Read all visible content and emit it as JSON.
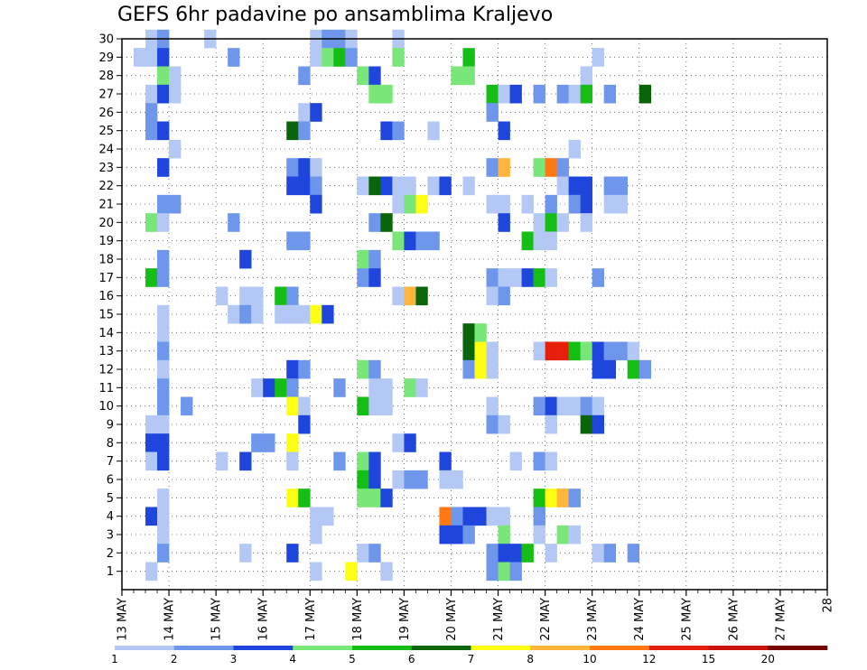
{
  "chart_data": {
    "type": "heatmap",
    "title": "GEFS 6hr padavine po ansamblima Kraljevo",
    "x_ticks": [
      "13 MAY",
      "14 MAY",
      "15 MAY",
      "16 MAY",
      "17 MAY",
      "18 MAY",
      "19 MAY",
      "20 MAY",
      "21 MAY",
      "22 MAY",
      "23 MAY",
      "24 MAY",
      "25 MAY",
      "26 MAY",
      "27 MAY",
      "28"
    ],
    "x_steps_per_day": 4,
    "y_ticks": [
      1,
      2,
      3,
      4,
      5,
      6,
      7,
      8,
      9,
      10,
      11,
      12,
      13,
      14,
      15,
      16,
      17,
      18,
      19,
      20,
      21,
      22,
      23,
      24,
      25,
      26,
      27,
      28,
      29,
      30
    ],
    "ylim": [
      0,
      30
    ],
    "grid": "dotted",
    "colorbar": {
      "levels": [
        "1",
        "2",
        "3",
        "4",
        "5",
        "6",
        "7",
        "8",
        "10",
        "12",
        "15",
        "20"
      ],
      "colors": [
        "#b4c8f5",
        "#6e96eb",
        "#1e46dc",
        "#78e678",
        "#14be14",
        "#0a640a",
        "#ffff14",
        "#ffb43c",
        "#ff7814",
        "#e61e0a",
        "#c81400",
        "#780000"
      ]
    },
    "series_format": "member, step index (6-hourly from 13 MAY 00Z), colour class index",
    "cells": [
      [
        30,
        2,
        0
      ],
      [
        30,
        3,
        1
      ],
      [
        30,
        7,
        0
      ],
      [
        30,
        16,
        0
      ],
      [
        30,
        17,
        1
      ],
      [
        30,
        18,
        1
      ],
      [
        30,
        19,
        0
      ],
      [
        30,
        23,
        0
      ],
      [
        29,
        1,
        0
      ],
      [
        29,
        2,
        0
      ],
      [
        29,
        3,
        2
      ],
      [
        29,
        9,
        1
      ],
      [
        29,
        16,
        0
      ],
      [
        29,
        17,
        3
      ],
      [
        29,
        18,
        4
      ],
      [
        29,
        19,
        1
      ],
      [
        29,
        23,
        3
      ],
      [
        29,
        29,
        4
      ],
      [
        29,
        40,
        0
      ],
      [
        28,
        3,
        3
      ],
      [
        28,
        4,
        0
      ],
      [
        28,
        15,
        1
      ],
      [
        28,
        20,
        3
      ],
      [
        28,
        21,
        2
      ],
      [
        28,
        28,
        3
      ],
      [
        28,
        29,
        3
      ],
      [
        28,
        39,
        0
      ],
      [
        27,
        2,
        0
      ],
      [
        27,
        3,
        2
      ],
      [
        27,
        4,
        0
      ],
      [
        27,
        21,
        3
      ],
      [
        27,
        22,
        3
      ],
      [
        27,
        31,
        4
      ],
      [
        27,
        32,
        0
      ],
      [
        27,
        33,
        2
      ],
      [
        27,
        35,
        1
      ],
      [
        27,
        37,
        1
      ],
      [
        27,
        38,
        0
      ],
      [
        27,
        39,
        4
      ],
      [
        27,
        41,
        1
      ],
      [
        27,
        44,
        5
      ],
      [
        26,
        2,
        1
      ],
      [
        26,
        15,
        0
      ],
      [
        26,
        16,
        2
      ],
      [
        26,
        31,
        1
      ],
      [
        25,
        2,
        1
      ],
      [
        25,
        3,
        2
      ],
      [
        25,
        14,
        5
      ],
      [
        25,
        15,
        1
      ],
      [
        25,
        22,
        2
      ],
      [
        25,
        23,
        1
      ],
      [
        25,
        26,
        0
      ],
      [
        25,
        32,
        2
      ],
      [
        24,
        4,
        0
      ],
      [
        24,
        38,
        0
      ],
      [
        23,
        3,
        2
      ],
      [
        23,
        14,
        1
      ],
      [
        23,
        15,
        2
      ],
      [
        23,
        16,
        0
      ],
      [
        23,
        31,
        1
      ],
      [
        23,
        32,
        7
      ],
      [
        23,
        35,
        3
      ],
      [
        23,
        36,
        8
      ],
      [
        23,
        37,
        1
      ],
      [
        22,
        14,
        2
      ],
      [
        22,
        15,
        2
      ],
      [
        22,
        16,
        1
      ],
      [
        22,
        20,
        0
      ],
      [
        22,
        21,
        5
      ],
      [
        22,
        22,
        2
      ],
      [
        22,
        23,
        0
      ],
      [
        22,
        24,
        0
      ],
      [
        22,
        26,
        0
      ],
      [
        22,
        27,
        2
      ],
      [
        22,
        29,
        0
      ],
      [
        22,
        37,
        0
      ],
      [
        22,
        38,
        2
      ],
      [
        22,
        39,
        2
      ],
      [
        22,
        41,
        1
      ],
      [
        22,
        42,
        1
      ],
      [
        21,
        3,
        1
      ],
      [
        21,
        4,
        1
      ],
      [
        21,
        16,
        2
      ],
      [
        21,
        23,
        0
      ],
      [
        21,
        24,
        3
      ],
      [
        21,
        25,
        6
      ],
      [
        21,
        31,
        0
      ],
      [
        21,
        32,
        0
      ],
      [
        21,
        34,
        0
      ],
      [
        21,
        36,
        1
      ],
      [
        21,
        38,
        1
      ],
      [
        21,
        39,
        2
      ],
      [
        21,
        41,
        0
      ],
      [
        21,
        42,
        0
      ],
      [
        20,
        2,
        3
      ],
      [
        20,
        3,
        0
      ],
      [
        20,
        9,
        1
      ],
      [
        20,
        21,
        1
      ],
      [
        20,
        22,
        5
      ],
      [
        20,
        32,
        2
      ],
      [
        20,
        35,
        0
      ],
      [
        20,
        36,
        4
      ],
      [
        20,
        37,
        0
      ],
      [
        20,
        39,
        0
      ],
      [
        19,
        14,
        1
      ],
      [
        19,
        15,
        1
      ],
      [
        19,
        23,
        3
      ],
      [
        19,
        24,
        2
      ],
      [
        19,
        25,
        1
      ],
      [
        19,
        26,
        1
      ],
      [
        19,
        34,
        4
      ],
      [
        19,
        35,
        0
      ],
      [
        19,
        36,
        0
      ],
      [
        18,
        3,
        1
      ],
      [
        18,
        10,
        2
      ],
      [
        18,
        20,
        3
      ],
      [
        18,
        21,
        1
      ],
      [
        17,
        2,
        4
      ],
      [
        17,
        3,
        1
      ],
      [
        17,
        20,
        1
      ],
      [
        17,
        21,
        2
      ],
      [
        17,
        31,
        1
      ],
      [
        17,
        32,
        0
      ],
      [
        17,
        33,
        0
      ],
      [
        17,
        34,
        2
      ],
      [
        17,
        35,
        4
      ],
      [
        17,
        36,
        0
      ],
      [
        17,
        40,
        1
      ],
      [
        16,
        8,
        0
      ],
      [
        16,
        10,
        0
      ],
      [
        16,
        11,
        0
      ],
      [
        16,
        13,
        4
      ],
      [
        16,
        14,
        1
      ],
      [
        16,
        23,
        0
      ],
      [
        16,
        24,
        7
      ],
      [
        16,
        25,
        5
      ],
      [
        16,
        31,
        0
      ],
      [
        16,
        32,
        1
      ],
      [
        15,
        3,
        0
      ],
      [
        15,
        9,
        0
      ],
      [
        15,
        10,
        1
      ],
      [
        15,
        11,
        0
      ],
      [
        15,
        13,
        0
      ],
      [
        15,
        14,
        0
      ],
      [
        15,
        15,
        0
      ],
      [
        15,
        16,
        6
      ],
      [
        15,
        17,
        2
      ],
      [
        14,
        3,
        0
      ],
      [
        14,
        29,
        5
      ],
      [
        14,
        30,
        3
      ],
      [
        13,
        3,
        1
      ],
      [
        13,
        29,
        5
      ],
      [
        13,
        30,
        6
      ],
      [
        13,
        31,
        0
      ],
      [
        13,
        35,
        0
      ],
      [
        13,
        36,
        9
      ],
      [
        13,
        37,
        9
      ],
      [
        13,
        38,
        4
      ],
      [
        13,
        39,
        3
      ],
      [
        13,
        40,
        2
      ],
      [
        13,
        41,
        1
      ],
      [
        13,
        42,
        1
      ],
      [
        13,
        43,
        0
      ],
      [
        12,
        3,
        0
      ],
      [
        12,
        14,
        2
      ],
      [
        12,
        15,
        1
      ],
      [
        12,
        20,
        3
      ],
      [
        12,
        21,
        1
      ],
      [
        12,
        29,
        1
      ],
      [
        12,
        30,
        6
      ],
      [
        12,
        31,
        0
      ],
      [
        12,
        40,
        2
      ],
      [
        12,
        41,
        2
      ],
      [
        12,
        43,
        4
      ],
      [
        12,
        44,
        1
      ],
      [
        11,
        3,
        1
      ],
      [
        11,
        11,
        0
      ],
      [
        11,
        12,
        2
      ],
      [
        11,
        13,
        4
      ],
      [
        11,
        14,
        1
      ],
      [
        11,
        18,
        1
      ],
      [
        11,
        21,
        0
      ],
      [
        11,
        22,
        0
      ],
      [
        11,
        24,
        3
      ],
      [
        11,
        25,
        0
      ],
      [
        10,
        3,
        1
      ],
      [
        10,
        5,
        1
      ],
      [
        10,
        14,
        6
      ],
      [
        10,
        15,
        0
      ],
      [
        10,
        20,
        4
      ],
      [
        10,
        21,
        0
      ],
      [
        10,
        22,
        0
      ],
      [
        10,
        31,
        0
      ],
      [
        10,
        35,
        1
      ],
      [
        10,
        36,
        2
      ],
      [
        10,
        37,
        0
      ],
      [
        10,
        38,
        0
      ],
      [
        10,
        39,
        1
      ],
      [
        10,
        40,
        0
      ],
      [
        9,
        2,
        0
      ],
      [
        9,
        3,
        0
      ],
      [
        9,
        15,
        2
      ],
      [
        9,
        31,
        1
      ],
      [
        9,
        32,
        0
      ],
      [
        9,
        36,
        0
      ],
      [
        9,
        39,
        5
      ],
      [
        9,
        40,
        2
      ],
      [
        8,
        2,
        2
      ],
      [
        8,
        3,
        2
      ],
      [
        8,
        11,
        1
      ],
      [
        8,
        12,
        1
      ],
      [
        8,
        14,
        6
      ],
      [
        8,
        23,
        0
      ],
      [
        8,
        24,
        2
      ],
      [
        7,
        2,
        0
      ],
      [
        7,
        3,
        2
      ],
      [
        7,
        8,
        0
      ],
      [
        7,
        10,
        2
      ],
      [
        7,
        14,
        0
      ],
      [
        7,
        18,
        1
      ],
      [
        7,
        20,
        3
      ],
      [
        7,
        21,
        2
      ],
      [
        7,
        27,
        2
      ],
      [
        7,
        33,
        0
      ],
      [
        7,
        35,
        1
      ],
      [
        7,
        36,
        0
      ],
      [
        6,
        20,
        4
      ],
      [
        6,
        21,
        2
      ],
      [
        6,
        23,
        0
      ],
      [
        6,
        24,
        1
      ],
      [
        6,
        25,
        1
      ],
      [
        6,
        27,
        0
      ],
      [
        6,
        28,
        0
      ],
      [
        5,
        3,
        0
      ],
      [
        5,
        14,
        6
      ],
      [
        5,
        15,
        4
      ],
      [
        5,
        20,
        3
      ],
      [
        5,
        21,
        3
      ],
      [
        5,
        22,
        2
      ],
      [
        5,
        35,
        4
      ],
      [
        5,
        36,
        6
      ],
      [
        5,
        37,
        7
      ],
      [
        5,
        38,
        1
      ],
      [
        4,
        2,
        2
      ],
      [
        4,
        3,
        0
      ],
      [
        4,
        16,
        0
      ],
      [
        4,
        17,
        0
      ],
      [
        4,
        27,
        8
      ],
      [
        4,
        28,
        1
      ],
      [
        4,
        29,
        2
      ],
      [
        4,
        30,
        2
      ],
      [
        4,
        31,
        0
      ],
      [
        4,
        32,
        0
      ],
      [
        4,
        35,
        1
      ],
      [
        3,
        3,
        0
      ],
      [
        3,
        16,
        0
      ],
      [
        3,
        27,
        2
      ],
      [
        3,
        28,
        2
      ],
      [
        3,
        29,
        1
      ],
      [
        3,
        32,
        3
      ],
      [
        3,
        35,
        0
      ],
      [
        3,
        37,
        3
      ],
      [
        3,
        38,
        0
      ],
      [
        2,
        3,
        1
      ],
      [
        2,
        10,
        0
      ],
      [
        2,
        14,
        2
      ],
      [
        2,
        20,
        0
      ],
      [
        2,
        21,
        1
      ],
      [
        2,
        31,
        1
      ],
      [
        2,
        32,
        2
      ],
      [
        2,
        33,
        2
      ],
      [
        2,
        34,
        4
      ],
      [
        2,
        36,
        0
      ],
      [
        2,
        40,
        0
      ],
      [
        2,
        41,
        1
      ],
      [
        2,
        43,
        1
      ],
      [
        1,
        2,
        0
      ],
      [
        1,
        16,
        0
      ],
      [
        1,
        19,
        6
      ],
      [
        1,
        22,
        0
      ],
      [
        1,
        31,
        1
      ],
      [
        1,
        32,
        3
      ],
      [
        1,
        33,
        1
      ]
    ]
  }
}
